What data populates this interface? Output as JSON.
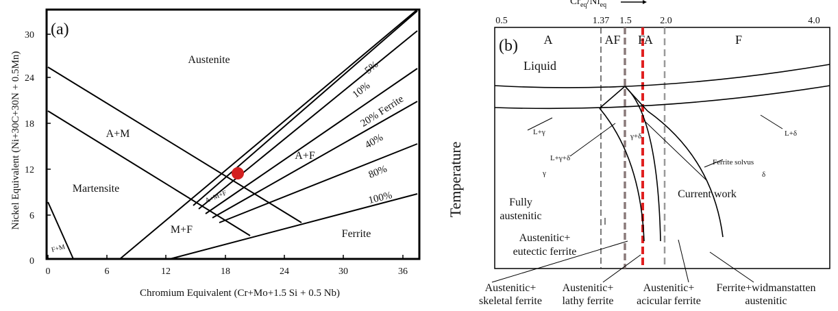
{
  "panel_a": {
    "label": "(a)",
    "xlabel": "Chromium Equivalent (Cr+Mo+1.5 Si + 0.5 Nb)",
    "ylabel": "Nickel Equivalent (Ni+30C+30N + 0.5Mn)",
    "x_ticks": [
      "0",
      "6",
      "12",
      "18",
      "24",
      "30",
      "36"
    ],
    "y_ticks": [
      "0",
      "6",
      "12",
      "18",
      "24",
      "30"
    ],
    "regions": {
      "austenite": "Austenite",
      "a_m": "A+M",
      "martensite": "Martensite",
      "m_f": "M+F",
      "a_f": "A+F",
      "a_m_f": "A+M+F",
      "ferrite": "Ferrite",
      "f_m": "F+M"
    },
    "ferrite_lines": [
      "5%",
      "10%",
      "20% Ferrite",
      "40%",
      "80%",
      "100%"
    ],
    "point_color": "#d32020"
  },
  "panel_b": {
    "label": "(b)",
    "top_axis_label": "Cr",
    "top_axis_sub1": "eq",
    "top_axis_mid": "/Ni",
    "top_axis_sub2": "eq",
    "top_ticks": [
      "0.5",
      "1.37",
      "1.5",
      "2.0",
      "4.0"
    ],
    "ylabel": "Temperature",
    "modes": [
      "A",
      "AF",
      "FA",
      "F"
    ],
    "regions": {
      "liquid": "Liquid",
      "l_gamma": "L+γ",
      "l_gamma_delta": "L+γ+δ",
      "gamma_delta": "γ+δ",
      "l_delta": "L+δ",
      "ferrite_solvus": "Ferrite solvus",
      "gamma": "γ",
      "delta": "δ",
      "fully_austenitic_1": "Fully",
      "fully_austenitic_2": "austenitic",
      "aus_eutectic_1": "Austenitic+",
      "aus_eutectic_2": "eutectic ferrite",
      "current_work": "Current work"
    },
    "captions": [
      {
        "line1": "Austenitic+",
        "line2": "skeletal ferrite"
      },
      {
        "line1": "Austenitic+",
        "line2": "lathy ferrite"
      },
      {
        "line1": "Austenitic+",
        "line2": "acicular ferrite"
      },
      {
        "line1": "Ferrite+widmanstatten",
        "line2": "austenitic"
      }
    ],
    "current_work_color": "#e02020"
  }
}
